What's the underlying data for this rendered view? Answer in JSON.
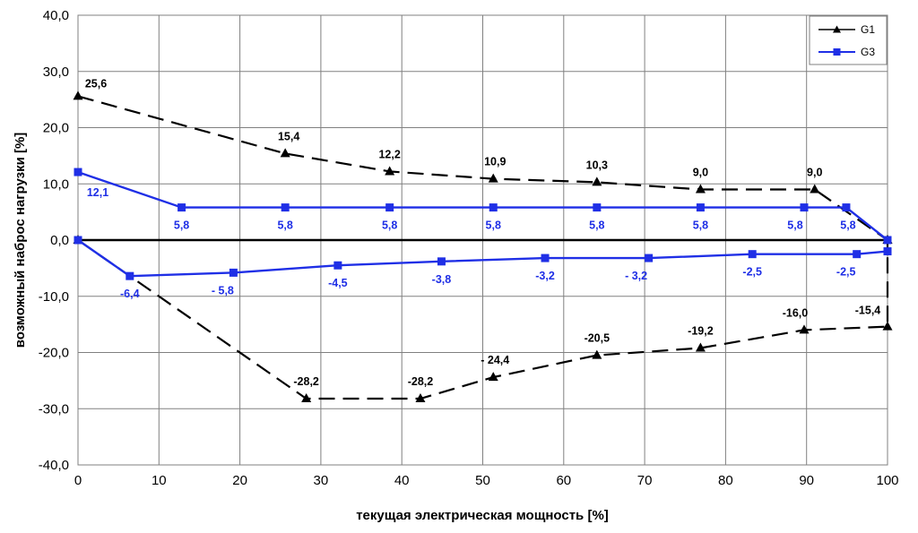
{
  "chart_data": {
    "type": "line",
    "xlabel": "текущая электрическая мощность [%]",
    "ylabel": "возможный наброс нагрузки [%]",
    "xlim": [
      0,
      100
    ],
    "ylim": [
      -40,
      40
    ],
    "x_ticks": [
      "0",
      "10",
      "20",
      "30",
      "40",
      "50",
      "60",
      "70",
      "80",
      "90",
      "100"
    ],
    "y_ticks": [
      "40,0",
      "30,0",
      "20,0",
      "10,0",
      "0,0",
      "-10,0",
      "-20,0",
      "-30,0",
      "-40,0"
    ],
    "grid": true,
    "legend_position": "top-right",
    "series": [
      {
        "name": "G1",
        "color": "#000000",
        "marker": "triangle",
        "dash": true,
        "upper": {
          "x": [
            0,
            25.6,
            38.5,
            51.3,
            64.1,
            76.9,
            91,
            100
          ],
          "y": [
            25.6,
            15.4,
            12.2,
            10.9,
            10.3,
            9.0,
            9.0,
            0
          ],
          "labels": [
            "25,6",
            "15,4",
            "12,2",
            "10,9",
            "10,3",
            "9,0",
            "9,0",
            ""
          ]
        },
        "lower": {
          "x": [
            0,
            28.2,
            42.3,
            51.3,
            64.1,
            76.9,
            89.7,
            100,
            100
          ],
          "y": [
            0,
            -28.2,
            -28.2,
            -24.4,
            -20.5,
            -19.2,
            -16.0,
            -15.4,
            0
          ],
          "labels": [
            "",
            "-28,2",
            "-28,2",
            "- 24,4",
            "-20,5",
            "-19,2",
            "-16,0",
            "-15,4",
            ""
          ]
        }
      },
      {
        "name": "G3",
        "color": "#1f2fe6",
        "marker": "square",
        "dash": false,
        "upper": {
          "x": [
            0,
            12.8,
            25.6,
            38.5,
            51.3,
            64.1,
            76.9,
            89.7,
            94.9,
            100
          ],
          "y": [
            12.1,
            5.8,
            5.8,
            5.8,
            5.8,
            5.8,
            5.8,
            5.8,
            5.8,
            0
          ],
          "labels": [
            "12,1",
            "5,8",
            "5,8",
            "5,8",
            "5,8",
            "5,8",
            "5,8",
            "5,8",
            "5,8",
            ""
          ]
        },
        "lower": {
          "x": [
            0,
            6.4,
            19.2,
            32.1,
            44.9,
            57.7,
            70.5,
            83.3,
            96.2,
            100
          ],
          "y": [
            0,
            -6.4,
            -5.8,
            -4.5,
            -3.8,
            -3.2,
            -3.2,
            -2.5,
            -2.5,
            -2.0
          ],
          "labels": [
            "",
            "-6,4",
            "- 5,8",
            "-4,5",
            "-3,8",
            "-3,2",
            "- 3,2",
            "-2,5",
            "-2,5",
            ""
          ]
        }
      }
    ]
  }
}
